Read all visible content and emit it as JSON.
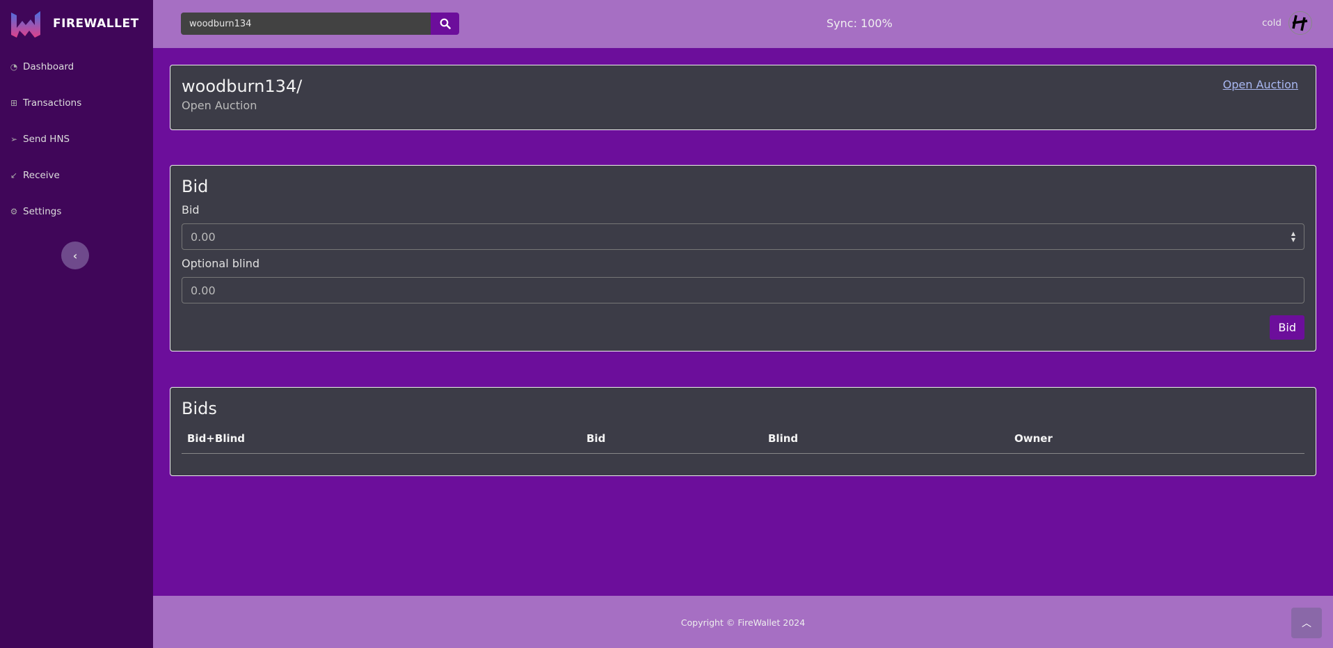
{
  "brand": {
    "name": "FIREWALLET"
  },
  "sidebar": {
    "items": [
      {
        "label": "Dashboard",
        "icon": "dashboard-icon"
      },
      {
        "label": "Transactions",
        "icon": "table-icon"
      },
      {
        "label": "Send HNS",
        "icon": "send-icon"
      },
      {
        "label": "Receive",
        "icon": "receive-icon"
      },
      {
        "label": "Settings",
        "icon": "gear-icon"
      }
    ]
  },
  "topbar": {
    "search_value": "woodburn134",
    "sync": "Sync: 100%",
    "account": "cold"
  },
  "domain": {
    "name": "woodburn134/",
    "status": "Open Auction",
    "action_link": "Open Auction"
  },
  "bid_form": {
    "title": "Bid",
    "bid_label": "Bid",
    "bid_placeholder": "0.00",
    "blind_label": "Optional blind",
    "blind_placeholder": "0.00",
    "submit": "Bid"
  },
  "bids": {
    "title": "Bids",
    "columns": [
      "Bid+Blind",
      "Bid",
      "Blind",
      "Owner"
    ],
    "rows": []
  },
  "footer": {
    "copyright": "Copyright © FireWallet 2024"
  },
  "colors": {
    "accent": "#6c0e9b",
    "sidebar": "#400659",
    "topbar": "#a66fc3",
    "card": "#3c3c47"
  }
}
